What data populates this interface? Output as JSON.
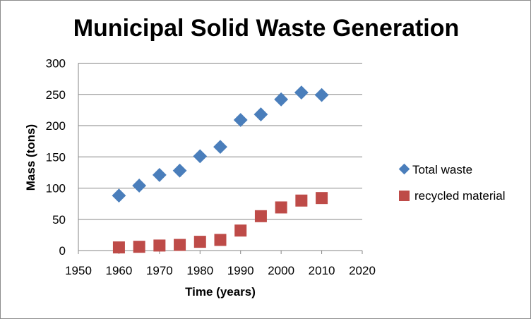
{
  "chart_data": {
    "type": "scatter",
    "title": "Municipal Solid Waste Generation",
    "xlabel": "Time (years)",
    "ylabel": "Mass (tons)",
    "xlim": [
      1950,
      2020
    ],
    "ylim": [
      0,
      300
    ],
    "xticks": [
      1950,
      1960,
      1970,
      1980,
      1990,
      2000,
      2010,
      2020
    ],
    "yticks": [
      0,
      50,
      100,
      150,
      200,
      250,
      300
    ],
    "grid": "horizontal",
    "legend": "right",
    "x": [
      1960,
      1965,
      1970,
      1975,
      1980,
      1985,
      1990,
      1995,
      2000,
      2005,
      2010
    ],
    "series": [
      {
        "name": "Total waste",
        "marker": "diamond",
        "color": "#4a7ebb",
        "values": [
          88,
          104,
          121,
          128,
          151,
          166,
          209,
          218,
          242,
          253,
          249
        ]
      },
      {
        "name": "recycled material",
        "marker": "square",
        "color": "#be4b48",
        "values": [
          5,
          6,
          8,
          9,
          14,
          17,
          32,
          55,
          69,
          80,
          84
        ]
      }
    ]
  }
}
